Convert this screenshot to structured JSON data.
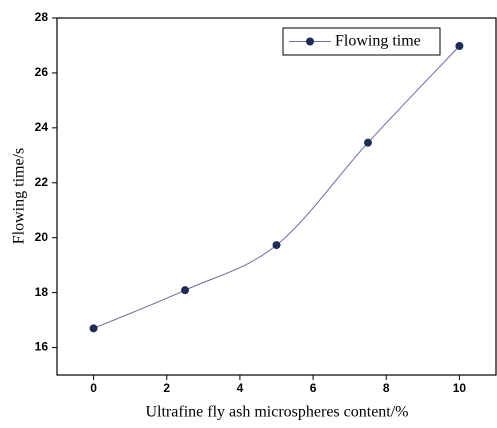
{
  "chart_data": {
    "type": "line",
    "x_label": "Ultrafine fly ash microspheres content/%",
    "y_label": "Flowing time/s",
    "x": [
      0,
      2.5,
      5,
      7.5,
      10
    ],
    "series": [
      {
        "name": "Flowing time",
        "color": "#1f2d55",
        "line_color": "#6b6b9e",
        "values": [
          16.7,
          18.09,
          19.73,
          23.46,
          26.98
        ]
      }
    ],
    "xlim": [
      -1,
      11
    ],
    "ylim": [
      15,
      28
    ],
    "xticks": [
      0,
      2,
      4,
      6,
      8,
      10
    ],
    "yticks": [
      16,
      18,
      20,
      22,
      24,
      26,
      28
    ],
    "smooth": true,
    "grid": false,
    "legend": "top-right"
  }
}
